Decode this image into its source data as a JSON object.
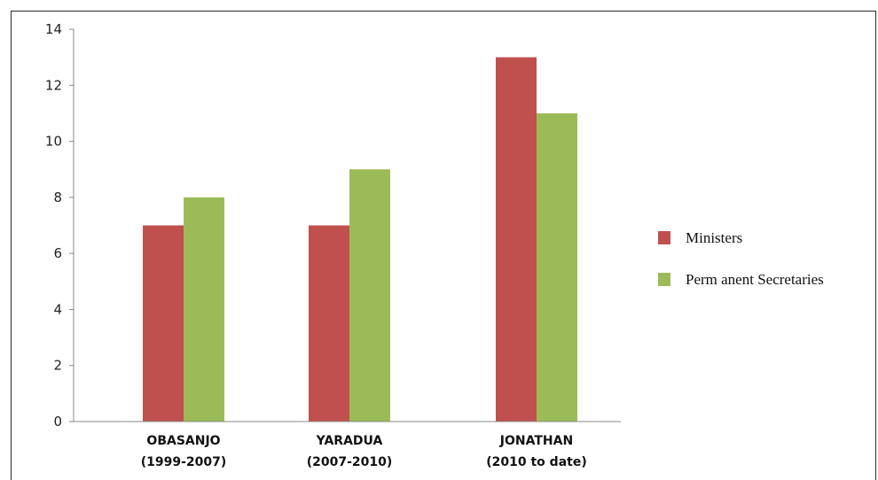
{
  "chart_data": {
    "type": "bar",
    "categories": [
      [
        "OBASANJO",
        "(1999-2007)"
      ],
      [
        "YARADUA",
        "(2007-2010)"
      ],
      [
        "JONATHAN",
        "(2010 to date)"
      ]
    ],
    "series": [
      {
        "name": "Ministers",
        "values": [
          7,
          7,
          13
        ],
        "color": "#c0504d"
      },
      {
        "name": "Perm anent Secretaries",
        "values": [
          8,
          9,
          11
        ],
        "color": "#9bbb59"
      }
    ],
    "ylim": [
      0,
      14
    ],
    "yticks": [
      "0",
      "2",
      "4",
      "6",
      "8",
      "10",
      "12",
      "14"
    ],
    "grid": false,
    "legend": "right",
    "title": "",
    "xlabel": "",
    "ylabel": ""
  }
}
